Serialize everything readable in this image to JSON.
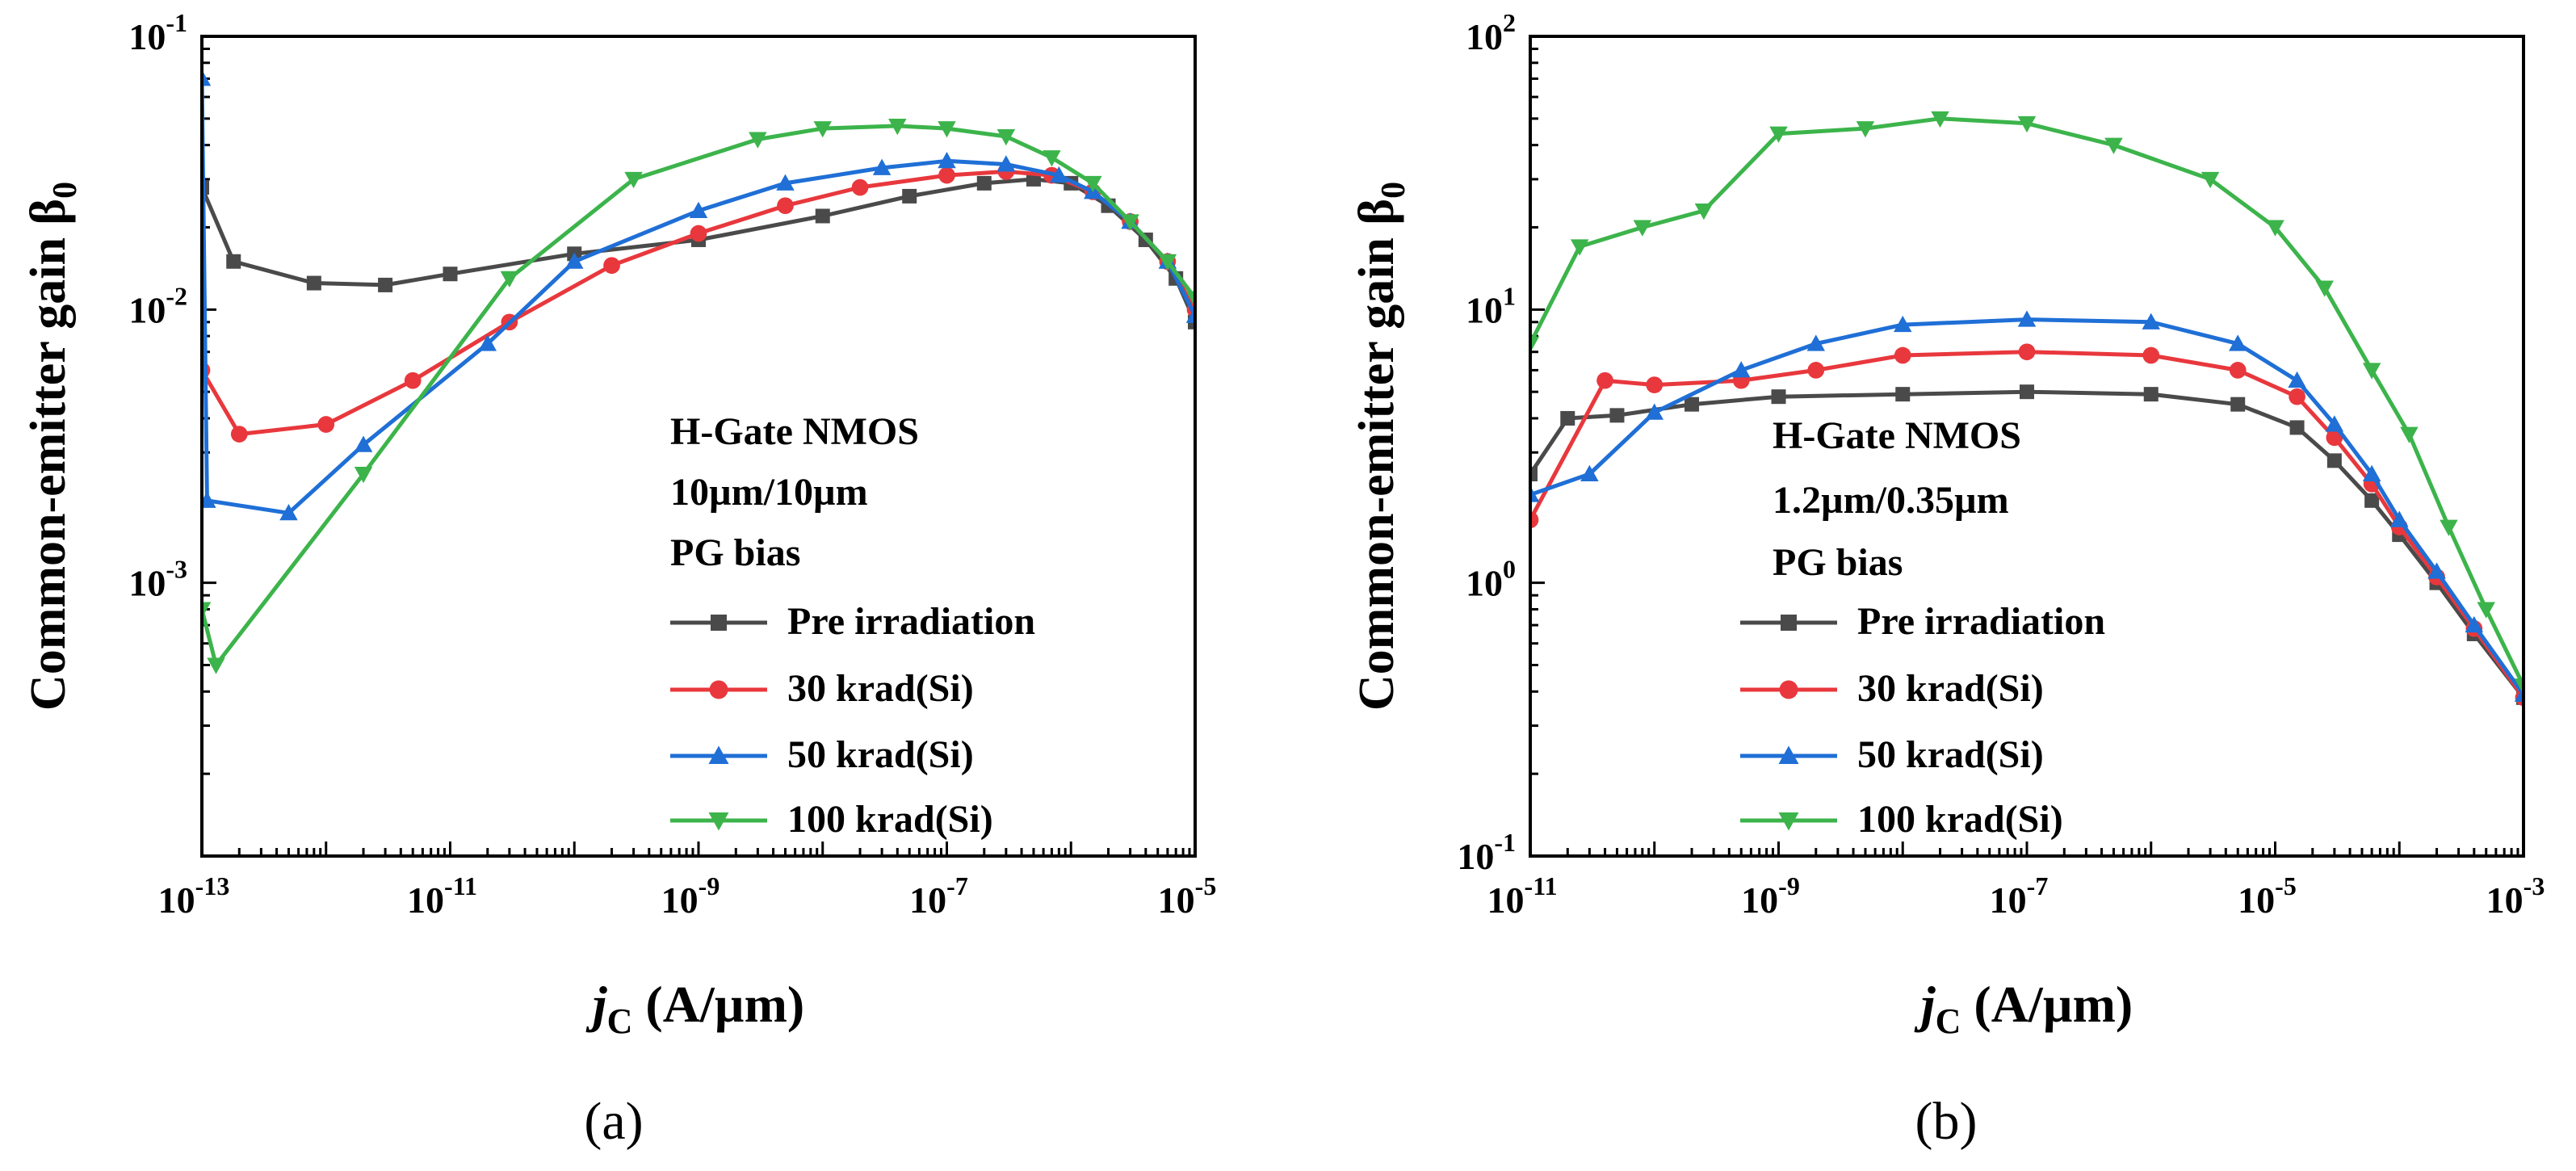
{
  "chart_data": [
    {
      "type": "line",
      "panel_label": "(a)",
      "xscale": "log",
      "yscale": "log",
      "xlim": [
        1e-13,
        1e-05
      ],
      "ylim": [
        0.0001,
        0.1
      ],
      "xlabel_main": "j",
      "xlabel_sub": "C",
      "xlabel_rest": " (A/µm)",
      "ylabel_main": "Common-emitter gain β",
      "ylabel_sub": "0",
      "x_ticks": [
        {
          "base": "10",
          "exp": "-13",
          "value": 1e-13
        },
        {
          "base": "10",
          "exp": "-11",
          "value": 1e-11
        },
        {
          "base": "10",
          "exp": "-9",
          "value": 1e-09
        },
        {
          "base": "10",
          "exp": "-7",
          "value": 1e-07
        },
        {
          "base": "10",
          "exp": "-5",
          "value": 1e-05
        }
      ],
      "y_ticks": [
        {
          "base": "10",
          "exp": "-3",
          "value": 0.001
        },
        {
          "base": "10",
          "exp": "-2",
          "value": 0.01
        },
        {
          "base": "10",
          "exp": "-1",
          "value": 0.1
        }
      ],
      "annotation": [
        "H-Gate NMOS",
        "10µm/10µm",
        "PG bias"
      ],
      "series": [
        {
          "name": "Pre irradiation",
          "color": "#4a4a4a",
          "marker": "square",
          "points": [
            [
              1e-13,
              0.028
            ],
            [
              1.8e-13,
              0.015
            ],
            [
              8e-13,
              0.0125
            ],
            [
              3e-12,
              0.0123
            ],
            [
              1e-11,
              0.0135
            ],
            [
              1e-10,
              0.016
            ],
            [
              1e-09,
              0.018
            ],
            [
              1e-08,
              0.022
            ],
            [
              5e-08,
              0.026
            ],
            [
              2e-07,
              0.029
            ],
            [
              5e-07,
              0.03
            ],
            [
              1e-06,
              0.029
            ],
            [
              2e-06,
              0.024
            ],
            [
              4e-06,
              0.018
            ],
            [
              7e-06,
              0.013
            ],
            [
              1e-05,
              0.009
            ]
          ]
        },
        {
          "name": "30 krad(Si)",
          "color": "#e8383d",
          "marker": "circle",
          "points": [
            [
              1e-13,
              0.006
            ],
            [
              2e-13,
              0.0035
            ],
            [
              1e-12,
              0.0038
            ],
            [
              5e-12,
              0.0055
            ],
            [
              3e-11,
              0.009
            ],
            [
              2e-10,
              0.0145
            ],
            [
              1e-09,
              0.019
            ],
            [
              5e-09,
              0.024
            ],
            [
              2e-08,
              0.028
            ],
            [
              1e-07,
              0.031
            ],
            [
              3e-07,
              0.032
            ],
            [
              7e-07,
              0.031
            ],
            [
              1.5e-06,
              0.027
            ],
            [
              3e-06,
              0.021
            ],
            [
              6e-06,
              0.015
            ],
            [
              1e-05,
              0.01
            ]
          ]
        },
        {
          "name": "50 krad(Si)",
          "color": "#1f6fd6",
          "marker": "triangle-up",
          "points": [
            [
              1e-13,
              0.07
            ],
            [
              1.1e-13,
              0.002
            ],
            [
              5e-13,
              0.0018
            ],
            [
              2e-12,
              0.0032
            ],
            [
              2e-11,
              0.0075
            ],
            [
              1e-10,
              0.015
            ],
            [
              1e-09,
              0.023
            ],
            [
              5e-09,
              0.029
            ],
            [
              3e-08,
              0.033
            ],
            [
              1e-07,
              0.035
            ],
            [
              3e-07,
              0.034
            ],
            [
              8e-07,
              0.031
            ],
            [
              1.5e-06,
              0.027
            ],
            [
              3e-06,
              0.021
            ],
            [
              6e-06,
              0.015
            ],
            [
              1e-05,
              0.0095
            ]
          ]
        },
        {
          "name": "100 krad(Si)",
          "color": "#3cb44b",
          "marker": "triangle-down",
          "points": [
            [
              1e-13,
              0.0008
            ],
            [
              1.3e-13,
              0.0005
            ],
            [
              2e-12,
              0.0025
            ],
            [
              3e-11,
              0.013
            ],
            [
              3e-10,
              0.03
            ],
            [
              3e-09,
              0.042
            ],
            [
              1e-08,
              0.046
            ],
            [
              4e-08,
              0.047
            ],
            [
              1e-07,
              0.046
            ],
            [
              3e-07,
              0.043
            ],
            [
              7e-07,
              0.036
            ],
            [
              1.5e-06,
              0.029
            ],
            [
              3e-06,
              0.021
            ],
            [
              6e-06,
              0.015
            ],
            [
              1e-05,
              0.011
            ]
          ]
        }
      ]
    },
    {
      "type": "line",
      "panel_label": "(b)",
      "xscale": "log",
      "yscale": "log",
      "xlim": [
        1e-11,
        0.001
      ],
      "ylim": [
        0.1,
        100
      ],
      "xlabel_main": "j",
      "xlabel_sub": "C",
      "xlabel_rest": " (A/µm)",
      "ylabel_main": "Common-emitter gain β",
      "ylabel_sub": "0",
      "x_ticks": [
        {
          "base": "10",
          "exp": "-11",
          "value": 1e-11
        },
        {
          "base": "10",
          "exp": "-9",
          "value": 1e-09
        },
        {
          "base": "10",
          "exp": "-7",
          "value": 1e-07
        },
        {
          "base": "10",
          "exp": "-5",
          "value": 1e-05
        },
        {
          "base": "10",
          "exp": "-3",
          "value": 0.001
        }
      ],
      "y_ticks": [
        {
          "base": "10",
          "exp": "-1",
          "value": 0.1
        },
        {
          "base": "10",
          "exp": "0",
          "value": 1
        },
        {
          "base": "10",
          "exp": "1",
          "value": 10
        },
        {
          "base": "10",
          "exp": "2",
          "value": 100
        }
      ],
      "annotation": [
        "H-Gate NMOS",
        "1.2µm/0.35µm",
        "PG bias"
      ],
      "series": [
        {
          "name": "Pre irradiation",
          "color": "#4a4a4a",
          "marker": "square",
          "points": [
            [
              1e-11,
              2.5
            ],
            [
              2e-11,
              4
            ],
            [
              5e-11,
              4.1
            ],
            [
              2e-10,
              4.5
            ],
            [
              1e-09,
              4.8
            ],
            [
              1e-08,
              4.9
            ],
            [
              1e-07,
              5
            ],
            [
              1e-06,
              4.9
            ],
            [
              5e-06,
              4.5
            ],
            [
              1.5e-05,
              3.7
            ],
            [
              3e-05,
              2.8
            ],
            [
              6e-05,
              2
            ],
            [
              0.0001,
              1.5
            ],
            [
              0.0002,
              1.0
            ],
            [
              0.0004,
              0.65
            ],
            [
              0.001,
              0.38
            ]
          ]
        },
        {
          "name": "30 krad(Si)",
          "color": "#e8383d",
          "marker": "circle",
          "points": [
            [
              1e-11,
              1.7
            ],
            [
              4e-11,
              5.5
            ],
            [
              1e-10,
              5.3
            ],
            [
              5e-10,
              5.5
            ],
            [
              2e-09,
              6
            ],
            [
              1e-08,
              6.8
            ],
            [
              1e-07,
              7
            ],
            [
              1e-06,
              6.8
            ],
            [
              5e-06,
              6
            ],
            [
              1.5e-05,
              4.8
            ],
            [
              3e-05,
              3.4
            ],
            [
              6e-05,
              2.3
            ],
            [
              0.0001,
              1.6
            ],
            [
              0.0002,
              1.05
            ],
            [
              0.0004,
              0.68
            ],
            [
              0.001,
              0.38
            ]
          ]
        },
        {
          "name": "50 krad(Si)",
          "color": "#1f6fd6",
          "marker": "triangle-up",
          "points": [
            [
              1e-11,
              2.1
            ],
            [
              3e-11,
              2.5
            ],
            [
              1e-10,
              4.2
            ],
            [
              5e-10,
              6
            ],
            [
              2e-09,
              7.5
            ],
            [
              1e-08,
              8.8
            ],
            [
              1e-07,
              9.2
            ],
            [
              1e-06,
              9
            ],
            [
              5e-06,
              7.5
            ],
            [
              1.5e-05,
              5.5
            ],
            [
              3e-05,
              3.8
            ],
            [
              6e-05,
              2.5
            ],
            [
              0.0001,
              1.7
            ],
            [
              0.0002,
              1.1
            ],
            [
              0.0004,
              0.7
            ],
            [
              0.001,
              0.39
            ]
          ]
        },
        {
          "name": "100 krad(Si)",
          "color": "#3cb44b",
          "marker": "triangle-down",
          "points": [
            [
              1e-11,
              7.5
            ],
            [
              2.5e-11,
              17
            ],
            [
              8e-11,
              20
            ],
            [
              2.5e-10,
              23
            ],
            [
              1e-09,
              44
            ],
            [
              5e-09,
              46
            ],
            [
              2e-08,
              50
            ],
            [
              1e-07,
              48
            ],
            [
              5e-07,
              40
            ],
            [
              3e-06,
              30
            ],
            [
              1e-05,
              20
            ],
            [
              2.5e-05,
              12
            ],
            [
              6e-05,
              6
            ],
            [
              0.00012,
              3.5
            ],
            [
              0.00025,
              1.6
            ],
            [
              0.0005,
              0.8
            ],
            [
              0.001,
              0.42
            ]
          ]
        }
      ]
    }
  ]
}
